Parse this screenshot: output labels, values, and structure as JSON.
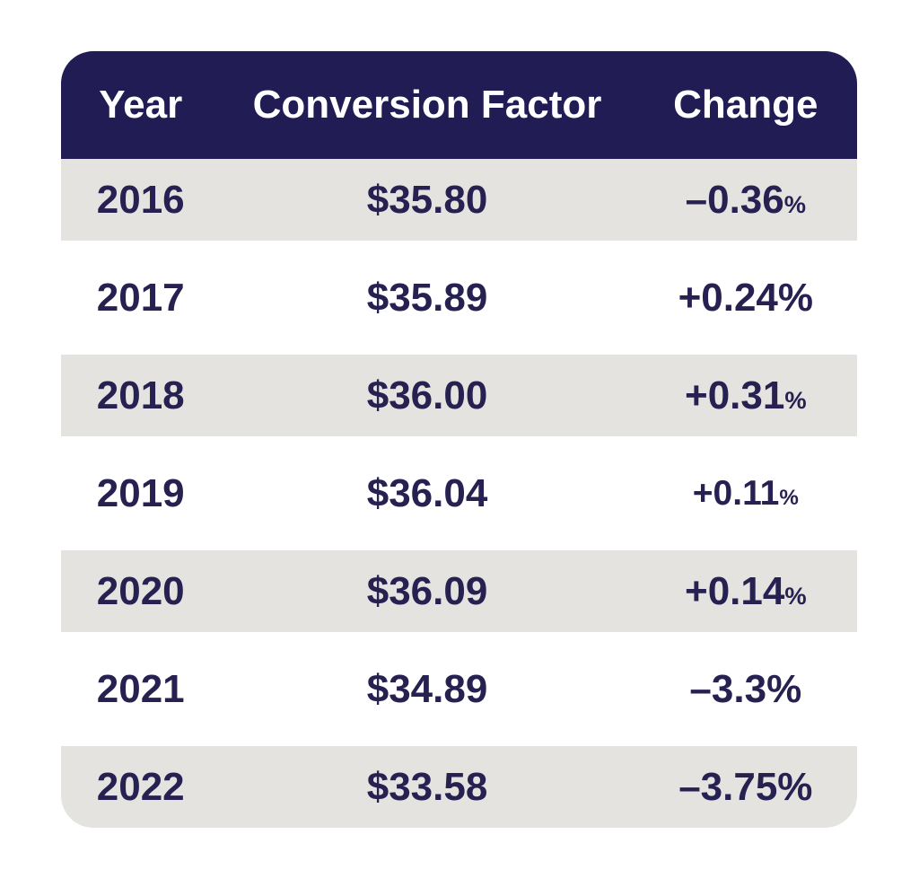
{
  "colors": {
    "page_bg": "#ffffff",
    "header_bg": "#211d54",
    "header_text": "#ffffff",
    "row_alt_bg": "#e5e3e0",
    "text": "#262150"
  },
  "table": {
    "columns": [
      "Year",
      "Conversion Factor",
      "Change"
    ],
    "rows": [
      {
        "year": "2016",
        "factor": "$35.80",
        "change": "–0.36",
        "pct": "%",
        "pct_small": true,
        "small_change": false,
        "shaded": true
      },
      {
        "year": "2017",
        "factor": "$35.89",
        "change": "+0.24",
        "pct": "%",
        "pct_small": false,
        "small_change": false,
        "shaded": false
      },
      {
        "year": "2018",
        "factor": "$36.00",
        "change": "+0.31",
        "pct": "%",
        "pct_small": true,
        "small_change": false,
        "shaded": true
      },
      {
        "year": "2019",
        "factor": "$36.04",
        "change": "+0.11",
        "pct": "%",
        "pct_small": true,
        "small_change": true,
        "shaded": false
      },
      {
        "year": "2020",
        "factor": "$36.09",
        "change": "+0.14",
        "pct": "%",
        "pct_small": true,
        "small_change": false,
        "shaded": true
      },
      {
        "year": "2021",
        "factor": "$34.89",
        "change": "–3.3",
        "pct": "%",
        "pct_small": false,
        "small_change": false,
        "shaded": false
      },
      {
        "year": "2022",
        "factor": "$33.58",
        "change": "–3.75",
        "pct": "%",
        "pct_small": false,
        "small_change": false,
        "shaded": true
      }
    ]
  },
  "chart_data": {
    "type": "table",
    "columns": [
      "Year",
      "Conversion Factor",
      "Change"
    ],
    "rows": [
      [
        "2016",
        "$35.80",
        "-0.36%"
      ],
      [
        "2017",
        "$35.89",
        "+0.24%"
      ],
      [
        "2018",
        "$36.00",
        "+0.31%"
      ],
      [
        "2019",
        "$36.04",
        "+0.11%"
      ],
      [
        "2020",
        "$36.09",
        "+0.14%"
      ],
      [
        "2021",
        "$34.89",
        "-3.3%"
      ],
      [
        "2022",
        "$33.58",
        "-3.75%"
      ]
    ],
    "notes": "Medicare physician fee schedule style conversion factor by year with percent change; header row navy, alternating shaded rows"
  }
}
